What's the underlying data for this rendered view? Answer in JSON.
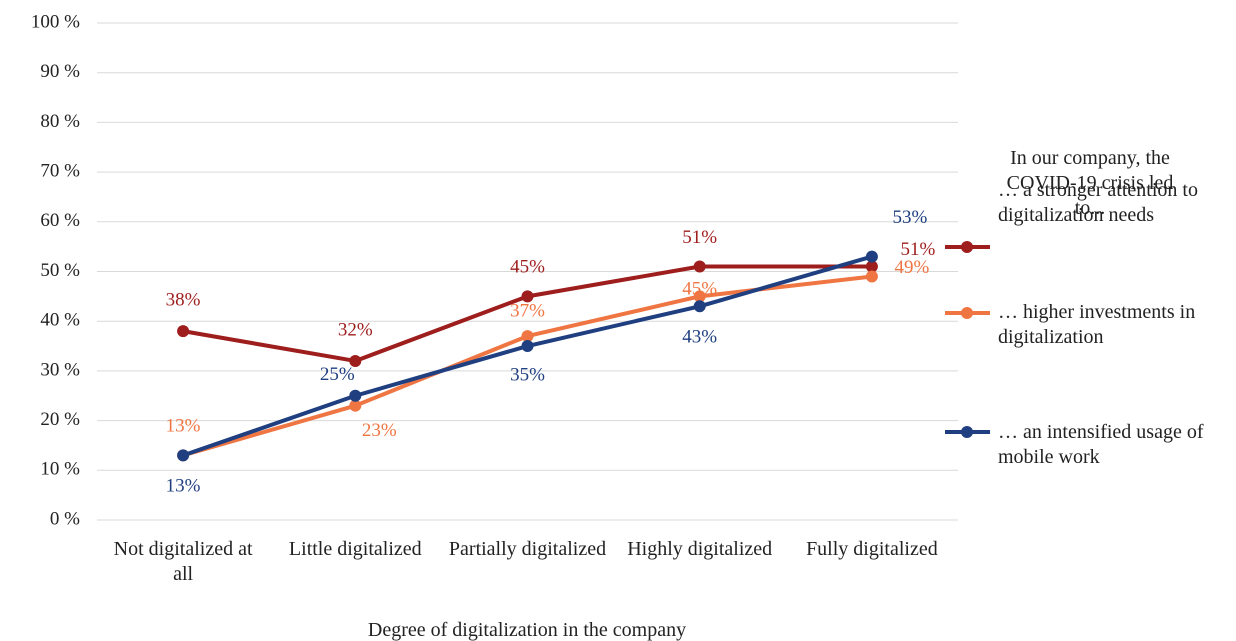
{
  "chart_data": {
    "type": "line",
    "x_label": "Degree of digitalization  in the company",
    "legend_title": "In our company, the COVID-19 crisis led to...",
    "categories": [
      "Not digitalized at all",
      "Little digitalized",
      "Partially digitalized",
      "Highly digitalized",
      "Fully digitalized"
    ],
    "series": [
      {
        "name": "… a stronger attention to digitalization  needs",
        "color": "#9e1d1d",
        "values": [
          38,
          32,
          45,
          51,
          51
        ],
        "value_labels": [
          "38%",
          "32%",
          "45%",
          "51%",
          "51%"
        ]
      },
      {
        "name": "… higher investments in digitalization",
        "color": "#ef7542",
        "values": [
          13,
          23,
          37,
          45,
          49
        ],
        "value_labels": [
          "13%",
          "23%",
          "37%",
          "45%",
          "49%"
        ]
      },
      {
        "name": "… an intensified usage of mobile work",
        "color": "#1f3f80",
        "values": [
          13,
          25,
          35,
          43,
          53
        ],
        "value_labels": [
          "13%",
          "25%",
          "35%",
          "43%",
          "53%"
        ]
      }
    ],
    "ylim": [
      0,
      100
    ],
    "yticks": [
      {
        "value": 0,
        "label": "0 %"
      },
      {
        "value": 10,
        "label": "10 %"
      },
      {
        "value": 20,
        "label": "20 %"
      },
      {
        "value": 30,
        "label": "30 %"
      },
      {
        "value": 40,
        "label": "40 %"
      },
      {
        "value": 50,
        "label": "50 %"
      },
      {
        "value": 60,
        "label": "60 %"
      },
      {
        "value": 70,
        "label": "70 %"
      },
      {
        "value": 80,
        "label": "80 %"
      },
      {
        "value": 90,
        "label": "90 %"
      },
      {
        "value": 100,
        "label": "100 %"
      }
    ],
    "grid": true,
    "legend": "right"
  }
}
